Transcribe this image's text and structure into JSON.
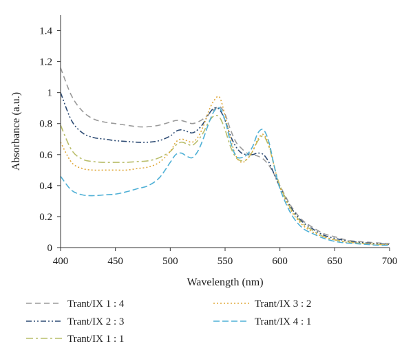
{
  "chart_data": {
    "type": "line",
    "xlabel": "Wavelength (nm)",
    "ylabel": "Absorbance (a.u.)",
    "xlim": [
      400,
      700
    ],
    "ylim": [
      0,
      1.5
    ],
    "xticks": [
      400,
      450,
      500,
      550,
      600,
      650,
      700
    ],
    "xtick_labels": [
      "400",
      "450",
      "500",
      "550",
      "600",
      "650",
      "700"
    ],
    "yticks": [
      0,
      0.2,
      0.4,
      0.6,
      0.8,
      1.0,
      1.2,
      1.4
    ],
    "ytick_labels": [
      "0",
      "0.2",
      "0.4",
      "0.6",
      "0.8",
      "1",
      "1.2",
      "1.4"
    ],
    "grid": false,
    "legend_position": "bottom",
    "series": [
      {
        "name": "Trant/IX 1 : 4",
        "color": "#9a9a9a",
        "dash": "dashed",
        "x": [
          400,
          410,
          420,
          430,
          440,
          450,
          460,
          470,
          480,
          490,
          500,
          505,
          510,
          515,
          520,
          525,
          530,
          535,
          540,
          545,
          550,
          555,
          560,
          565,
          570,
          575,
          580,
          585,
          590,
          595,
          600,
          610,
          620,
          630,
          640,
          650,
          660,
          670,
          680,
          690,
          700
        ],
        "y": [
          1.16,
          0.98,
          0.88,
          0.83,
          0.81,
          0.8,
          0.79,
          0.78,
          0.78,
          0.79,
          0.81,
          0.82,
          0.82,
          0.81,
          0.8,
          0.81,
          0.83,
          0.86,
          0.89,
          0.91,
          0.86,
          0.76,
          0.68,
          0.64,
          0.61,
          0.6,
          0.59,
          0.57,
          0.53,
          0.47,
          0.4,
          0.27,
          0.18,
          0.13,
          0.09,
          0.07,
          0.05,
          0.04,
          0.035,
          0.03,
          0.025
        ]
      },
      {
        "name": "Trant/IX 2 : 3",
        "color": "#2c4a73",
        "dash": "dash-dot-dot",
        "x": [
          400,
          410,
          420,
          430,
          440,
          450,
          460,
          470,
          480,
          490,
          500,
          505,
          510,
          515,
          520,
          525,
          530,
          535,
          540,
          545,
          550,
          555,
          560,
          565,
          570,
          575,
          580,
          585,
          590,
          595,
          600,
          610,
          620,
          630,
          640,
          650,
          660,
          670,
          680,
          690,
          700
        ],
        "y": [
          1.0,
          0.82,
          0.74,
          0.71,
          0.7,
          0.69,
          0.685,
          0.68,
          0.68,
          0.69,
          0.72,
          0.75,
          0.76,
          0.75,
          0.74,
          0.76,
          0.8,
          0.86,
          0.9,
          0.89,
          0.82,
          0.72,
          0.65,
          0.61,
          0.6,
          0.6,
          0.61,
          0.6,
          0.55,
          0.47,
          0.39,
          0.26,
          0.17,
          0.12,
          0.08,
          0.06,
          0.045,
          0.035,
          0.03,
          0.025,
          0.02
        ]
      },
      {
        "name": "Trant/IX 1 : 1",
        "color": "#b9bd6a",
        "dash": "dash-dot",
        "x": [
          400,
          410,
          420,
          430,
          440,
          450,
          460,
          470,
          480,
          490,
          500,
          505,
          510,
          515,
          520,
          525,
          530,
          535,
          540,
          545,
          550,
          555,
          560,
          565,
          570,
          575,
          580,
          585,
          590,
          595,
          600,
          610,
          620,
          630,
          640,
          650,
          660,
          670,
          680,
          690,
          700
        ],
        "y": [
          0.79,
          0.63,
          0.57,
          0.555,
          0.55,
          0.55,
          0.55,
          0.555,
          0.56,
          0.58,
          0.62,
          0.66,
          0.68,
          0.67,
          0.66,
          0.69,
          0.74,
          0.81,
          0.85,
          0.84,
          0.76,
          0.65,
          0.58,
          0.56,
          0.57,
          0.62,
          0.69,
          0.72,
          0.65,
          0.52,
          0.4,
          0.25,
          0.16,
          0.11,
          0.07,
          0.05,
          0.04,
          0.03,
          0.025,
          0.02,
          0.02
        ]
      },
      {
        "name": "Trant/IX 3 : 2",
        "color": "#e0a83a",
        "dash": "dotted",
        "x": [
          400,
          410,
          420,
          430,
          440,
          450,
          460,
          470,
          480,
          490,
          500,
          505,
          510,
          515,
          520,
          525,
          530,
          535,
          540,
          545,
          550,
          555,
          560,
          565,
          570,
          575,
          580,
          585,
          590,
          595,
          600,
          610,
          620,
          630,
          640,
          650,
          660,
          670,
          680,
          690,
          700
        ],
        "y": [
          0.68,
          0.55,
          0.51,
          0.5,
          0.5,
          0.5,
          0.5,
          0.51,
          0.52,
          0.55,
          0.62,
          0.68,
          0.7,
          0.69,
          0.68,
          0.71,
          0.78,
          0.88,
          0.95,
          0.97,
          0.85,
          0.7,
          0.59,
          0.55,
          0.57,
          0.62,
          0.7,
          0.73,
          0.66,
          0.52,
          0.39,
          0.24,
          0.15,
          0.1,
          0.07,
          0.05,
          0.035,
          0.03,
          0.025,
          0.02,
          0.02
        ]
      },
      {
        "name": "Trant/IX 4 : 1",
        "color": "#4fb0d6",
        "dash": "long-dash",
        "x": [
          400,
          410,
          420,
          430,
          440,
          450,
          460,
          470,
          480,
          490,
          500,
          505,
          510,
          515,
          520,
          525,
          530,
          535,
          540,
          545,
          550,
          555,
          560,
          565,
          570,
          575,
          580,
          585,
          590,
          595,
          600,
          610,
          620,
          630,
          640,
          650,
          660,
          670,
          680,
          690,
          700
        ],
        "y": [
          0.46,
          0.37,
          0.34,
          0.335,
          0.34,
          0.345,
          0.36,
          0.38,
          0.4,
          0.45,
          0.55,
          0.6,
          0.61,
          0.59,
          0.58,
          0.62,
          0.7,
          0.8,
          0.88,
          0.9,
          0.82,
          0.68,
          0.59,
          0.58,
          0.6,
          0.65,
          0.74,
          0.76,
          0.68,
          0.52,
          0.38,
          0.22,
          0.13,
          0.09,
          0.06,
          0.04,
          0.03,
          0.025,
          0.02,
          0.015,
          0.015
        ]
      }
    ],
    "legend_layout": [
      {
        "series": 0,
        "column": 0,
        "row": 0
      },
      {
        "series": 3,
        "column": 1,
        "row": 0
      },
      {
        "series": 1,
        "column": 0,
        "row": 1
      },
      {
        "series": 4,
        "column": 1,
        "row": 1
      },
      {
        "series": 2,
        "column": 0,
        "row": 2
      }
    ]
  }
}
